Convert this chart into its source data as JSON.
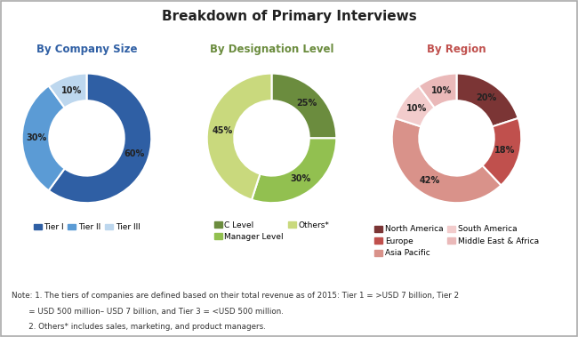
{
  "title": "Breakdown of Primary Interviews",
  "title_fontsize": 11,
  "title_fontweight": "bold",
  "chart1_title": "By Company Size",
  "chart1_values": [
    60,
    30,
    10
  ],
  "chart1_labels": [
    "60%",
    "30%",
    "10%"
  ],
  "chart1_colors": [
    "#2F5FA4",
    "#5B9BD5",
    "#BDD7EE"
  ],
  "chart1_legend": [
    "Tier I",
    "Tier II",
    "Tier III"
  ],
  "chart1_title_color": "#2F5FA4",
  "chart2_title": "By Designation Level",
  "chart2_values": [
    25,
    30,
    45
  ],
  "chart2_labels": [
    "25%",
    "30%",
    "45%"
  ],
  "chart2_colors": [
    "#6B8C3E",
    "#92C050",
    "#C9D97D"
  ],
  "chart2_legend": [
    "C Level",
    "Manager Level",
    "Others*"
  ],
  "chart2_title_color": "#6B8C3E",
  "chart3_title": "By Region",
  "chart3_values": [
    20,
    18,
    42,
    10,
    10
  ],
  "chart3_labels": [
    "20%",
    "18%",
    "42%",
    "10%",
    "10%"
  ],
  "chart3_colors": [
    "#7B3535",
    "#C0504D",
    "#D9928A",
    "#F2CCCC",
    "#EAB9B9"
  ],
  "chart3_legend_row1": [
    "North America",
    "Europe"
  ],
  "chart3_legend_row2": [
    "Asia Pacific",
    "South America"
  ],
  "chart3_legend_row3": [
    "Middle East & Africa"
  ],
  "chart3_legend": [
    "North America",
    "Europe",
    "Asia Pacific",
    "South America",
    "Middle East & Africa"
  ],
  "chart3_title_color": "#C0504D",
  "note1": "Note: 1. The tiers of companies are defined based on their total revenue as of 2015: Tier 1 = >USD 7 billion, Tier 2",
  "note1b": "       = USD 500 million– USD 7 billion, and Tier 3 = <USD 500 million.",
  "note2": "       2. Others* includes sales, marketing, and product managers.",
  "bg_color": "#FFFFFF",
  "border_color": "#AAAAAA"
}
